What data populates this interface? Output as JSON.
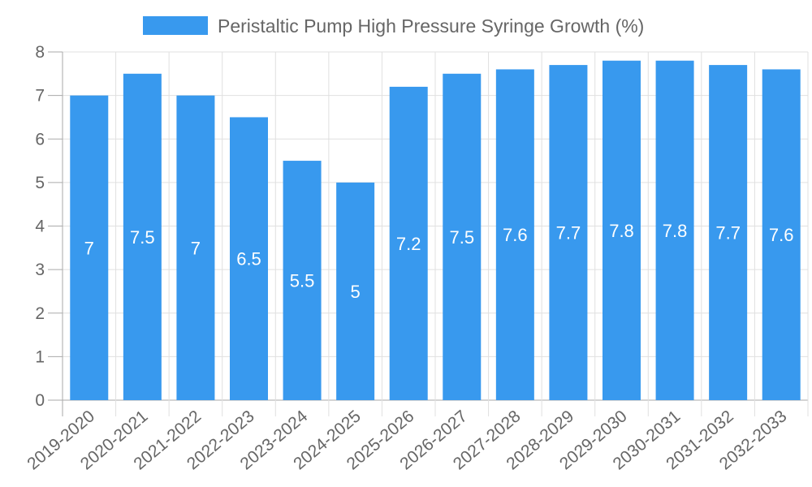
{
  "chart_data": {
    "type": "bar",
    "title": "",
    "legend": [
      "Peristaltic Pump High Pressure Syringe Growth (%)"
    ],
    "legend_position": "top",
    "categories": [
      "2019-2020",
      "2020-2021",
      "2021-2022",
      "2022-2023",
      "2023-2024",
      "2024-2025",
      "2025-2026",
      "2026-2027",
      "2027-2028",
      "2028-2029",
      "2029-2030",
      "2030-2031",
      "2031-2032",
      "2032-2033"
    ],
    "series": [
      {
        "name": "Peristaltic Pump High Pressure Syringe Growth (%)",
        "values": [
          7,
          7.5,
          7,
          6.5,
          5.5,
          5,
          7.2,
          7.5,
          7.6,
          7.7,
          7.8,
          7.8,
          7.7,
          7.6
        ]
      }
    ],
    "data_labels": [
      "7",
      "7.5",
      "7",
      "6.5",
      "5.5",
      "5",
      "7.2",
      "7.5",
      "7.6",
      "7.7",
      "7.8",
      "7.8",
      "7.7",
      "7.6"
    ],
    "yticks": [
      "0",
      "1",
      "2",
      "3",
      "4",
      "5",
      "6",
      "7",
      "8"
    ],
    "ylim": [
      0,
      8
    ],
    "grid": true,
    "xlabel": "",
    "ylabel": "",
    "colors": {
      "bar": "#3899ee",
      "grid": "#e0e0e0",
      "axis": "#aaaaaa",
      "text": "#666666",
      "label": "#ffffff"
    }
  }
}
